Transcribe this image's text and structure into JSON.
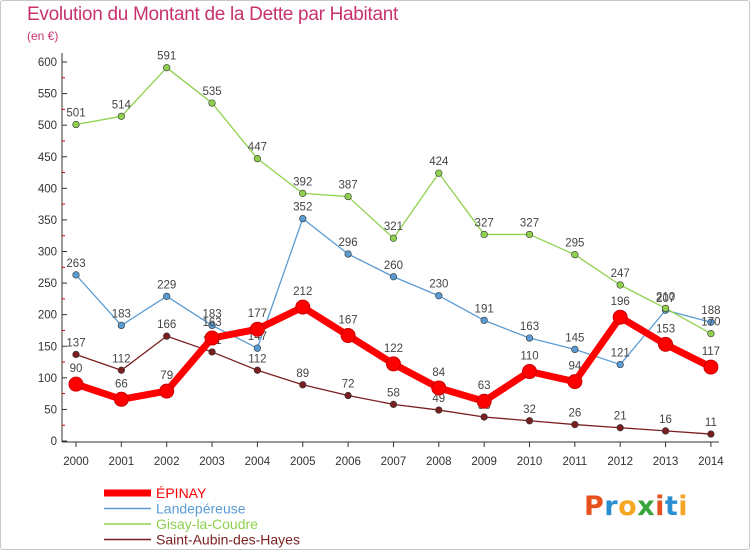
{
  "chart_data": {
    "type": "line",
    "title": "Evolution du Montant de la Dette par Habitant",
    "subtitle": "(en €)",
    "x": [
      "2000",
      "2001",
      "2002",
      "2003",
      "2004",
      "2005",
      "2006",
      "2007",
      "2008",
      "2009",
      "2010",
      "2011",
      "2012",
      "2013",
      "2014"
    ],
    "ylim": [
      0,
      600
    ],
    "yticks": [
      0,
      50,
      100,
      150,
      200,
      250,
      300,
      350,
      400,
      450,
      500,
      550,
      600
    ],
    "grid": false,
    "legend_position": "bottom-left",
    "series": [
      {
        "name": "ÉPINAY",
        "color": "#ff0000",
        "emphasis": true,
        "values": [
          90,
          66,
          79,
          163,
          177,
          212,
          167,
          122,
          84,
          63,
          110,
          94,
          196,
          153,
          117
        ]
      },
      {
        "name": "Landepéreuse",
        "color": "#5a9bd4",
        "values": [
          263,
          183,
          229,
          183,
          147,
          352,
          296,
          260,
          230,
          191,
          163,
          145,
          121,
          207,
          188
        ]
      },
      {
        "name": "Gisay-la-Coudre",
        "color": "#8fd14f",
        "values": [
          501,
          514,
          591,
          535,
          447,
          392,
          387,
          321,
          424,
          327,
          327,
          295,
          247,
          210,
          170
        ]
      },
      {
        "name": "Saint-Aubin-des-Hayes",
        "color": "#7a1f1f",
        "values": [
          137,
          112,
          166,
          141,
          112,
          89,
          72,
          58,
          49,
          38,
          32,
          26,
          21,
          16,
          11
        ]
      }
    ]
  },
  "logo": {
    "letters": [
      "P",
      "r",
      "o",
      "x",
      "i",
      "t",
      "i"
    ]
  },
  "colors": {
    "title": "#c8326e",
    "axis": "#333333",
    "tick_red": "#cc0000"
  }
}
